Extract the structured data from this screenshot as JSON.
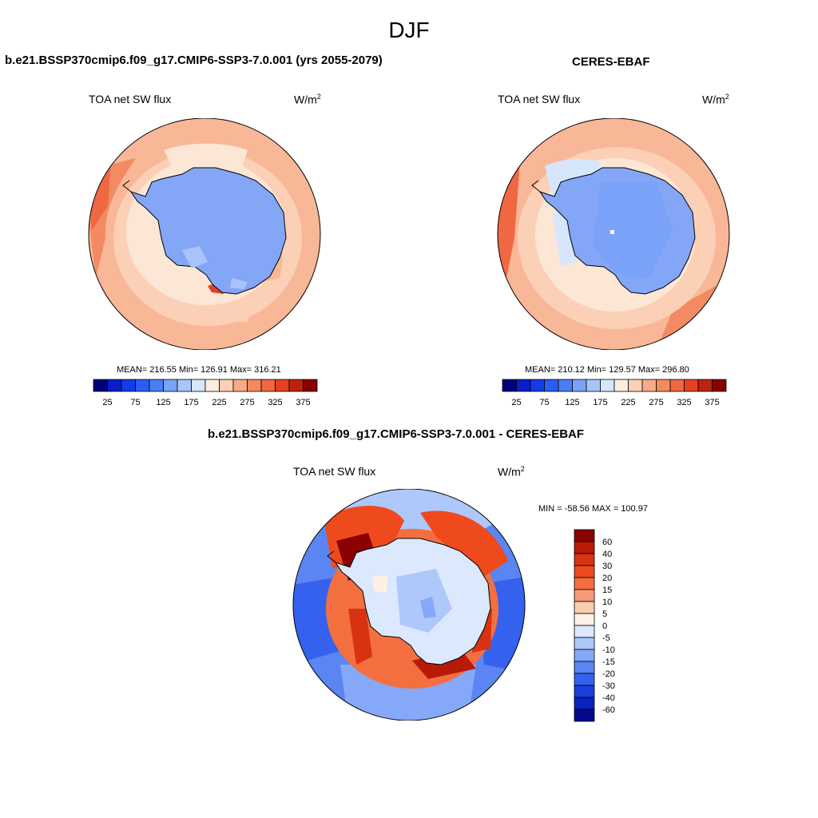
{
  "figure_title": "DJF",
  "panels": [
    {
      "title": "b.e21.BSSP370cmip6.f09_g17.CMIP6-SSP3-7.0.001 (yrs 2055-2079)",
      "variable": "TOA net SW flux",
      "unit": "W/m",
      "unit_sup": "2",
      "stats": "MEAN= 216.55  Min= 126.91  Max= 316.21"
    },
    {
      "title": "CERES-EBAF",
      "variable": "TOA net SW flux",
      "unit": "W/m",
      "unit_sup": "2",
      "stats": "MEAN= 210.12  Min= 129.57  Max= 296.80"
    },
    {
      "title": "b.e21.BSSP370cmip6.f09_g17.CMIP6-SSP3-7.0.001 - CERES-EBAF",
      "variable": "TOA net SW flux",
      "unit": "W/m",
      "unit_sup": "2",
      "stats": "MIN = -58.56 MAX = 100.97"
    }
  ],
  "abs_colorbar": {
    "colors": [
      "#00007a",
      "#0a1ec8",
      "#143ce6",
      "#2a5ef2",
      "#4a7ef5",
      "#7aa2f8",
      "#a8c4fa",
      "#d6e6fd",
      "#fdeee0",
      "#fbd0b6",
      "#f7aa88",
      "#f38a62",
      "#ef6842",
      "#e24222",
      "#bc2210",
      "#880000"
    ],
    "tick_labels": [
      "25",
      "75",
      "125",
      "175",
      "225",
      "275",
      "325",
      "375"
    ]
  },
  "diff_colorbar": {
    "colors": [
      "#8b0000",
      "#b81a08",
      "#d83212",
      "#ee4a1e",
      "#f46f40",
      "#f79a78",
      "#fbcbb0",
      "#fdf0e4",
      "#dbe8fd",
      "#aec8fb",
      "#86a8f8",
      "#5a85f3",
      "#3462ee",
      "#1a3edb",
      "#0a22c0",
      "#000a8a"
    ],
    "tick_labels": [
      "60",
      "40",
      "30",
      "20",
      "15",
      "10",
      "5",
      "0",
      "-5",
      "-10",
      "-15",
      "-20",
      "-30",
      "-40",
      "-60"
    ]
  },
  "map_colors": {
    "ocean_warm_light": "#fce6d6",
    "ocean_warm": "#f8b796",
    "ocean_warm_strong": "#f38a62",
    "ocean_red": "#e85a38",
    "antarctica": "#84a6f6",
    "antarctica_dark": "#6f93f2",
    "diff_blue": "#4a7ef5",
    "diff_light_blue": "#d6e6fd",
    "diff_red": "#e24222",
    "diff_dark_red": "#8b0000"
  }
}
